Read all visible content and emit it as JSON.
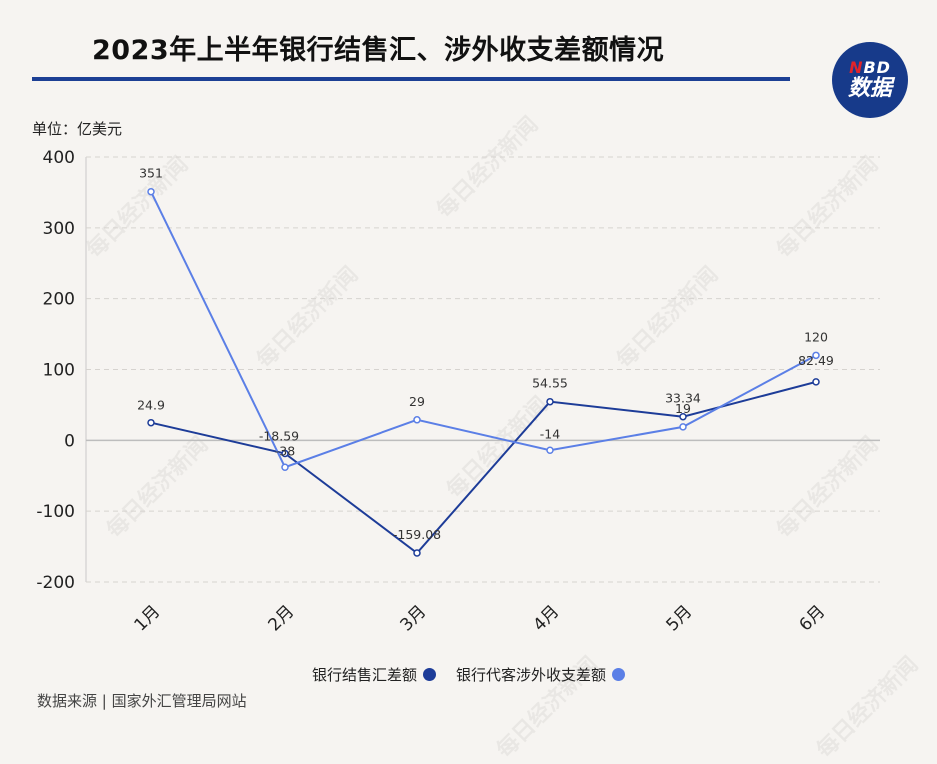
{
  "title": "2023年上半年银行结售汇、涉外收支差额情况",
  "logo": {
    "line1_n": "N",
    "line1_rest": "BD",
    "line2": "数据"
  },
  "unit": "单位：亿美元",
  "source": "数据来源 | 国家外汇管理局网站",
  "watermark": "每日经济新闻",
  "colors": {
    "title_rule": "#1c3f94",
    "series1": "#1d3c98",
    "series2": "#5b7fe6",
    "logo_bg": "#173a8a",
    "logo_red": "#e0242a"
  },
  "chart_data": {
    "type": "line",
    "categories": [
      "1月",
      "2月",
      "3月",
      "4月",
      "5月",
      "6月"
    ],
    "ylim": [
      -200,
      400
    ],
    "yticks": [
      400,
      300,
      200,
      100,
      0,
      -100,
      -200
    ],
    "grid": true,
    "legend_position": "bottom",
    "series": [
      {
        "name": "银行结售汇差额",
        "values": [
          24.9,
          -18.59,
          -159.08,
          54.55,
          33.34,
          82.49
        ],
        "labels": [
          "24.9",
          "-18.59",
          "-159.08",
          "54.55",
          "33.34",
          "82.49"
        ],
        "color": "#1d3c98"
      },
      {
        "name": "银行代客涉外收支差额",
        "values": [
          351,
          -38,
          29,
          -14,
          19,
          120
        ],
        "labels": [
          "351",
          "-38",
          "29",
          "-14",
          "19",
          "120"
        ],
        "color": "#5b7fe6"
      }
    ]
  }
}
